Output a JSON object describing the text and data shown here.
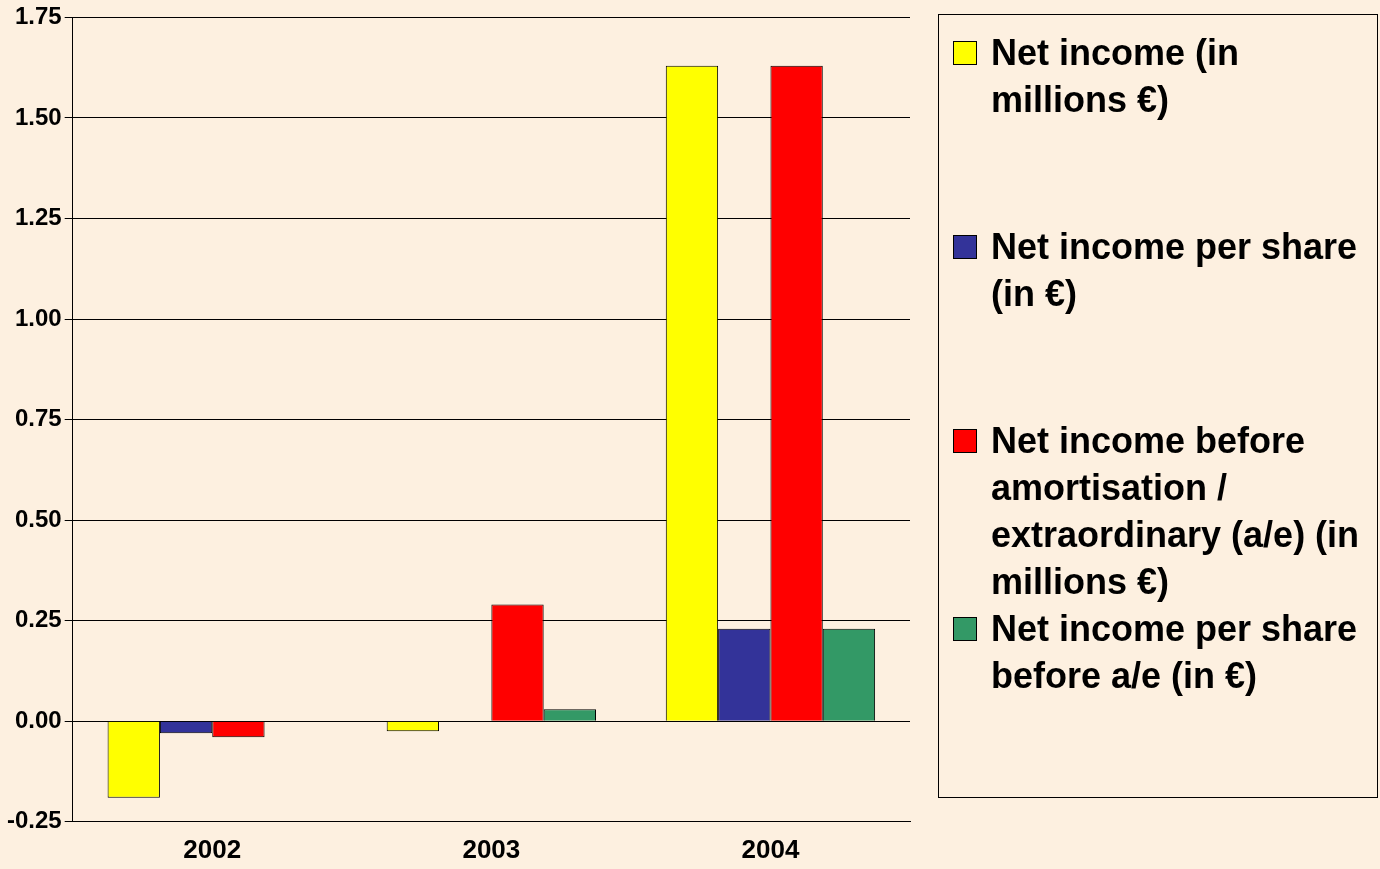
{
  "chart_data": {
    "type": "bar",
    "categories": [
      "2002",
      "2003",
      "2004"
    ],
    "series": [
      {
        "name": "Net income (in millions €)",
        "color": "#ffff00",
        "values": [
          -0.19,
          -0.025,
          1.63
        ]
      },
      {
        "name": "Net income per share (in €)",
        "color": "#333399",
        "values": [
          -0.03,
          0,
          0.23
        ]
      },
      {
        "name": "Net income before amortisation / extraordinary (a/e) (in millions €)",
        "color": "#ff0000",
        "values": [
          -0.04,
          0.29,
          1.63
        ]
      },
      {
        "name": "Net income per share before a/e (in €)",
        "color": "#339966",
        "values": [
          0,
          0.03,
          0.23
        ]
      }
    ],
    "ylim": [
      -0.25,
      1.75
    ],
    "yticks": [
      {
        "value": -0.25,
        "label": "-0.25"
      },
      {
        "value": 0,
        "label": "0.00"
      },
      {
        "value": 0.25,
        "label": "0.25"
      },
      {
        "value": 0.5,
        "label": "0.50"
      },
      {
        "value": 0.75,
        "label": "0.75"
      },
      {
        "value": 1,
        "label": "1.00"
      },
      {
        "value": 1.25,
        "label": "1.25"
      },
      {
        "value": 1.5,
        "label": "1.50"
      },
      {
        "value": 1.75,
        "label": "1.75"
      }
    ],
    "grid": "y",
    "legend": "right"
  }
}
